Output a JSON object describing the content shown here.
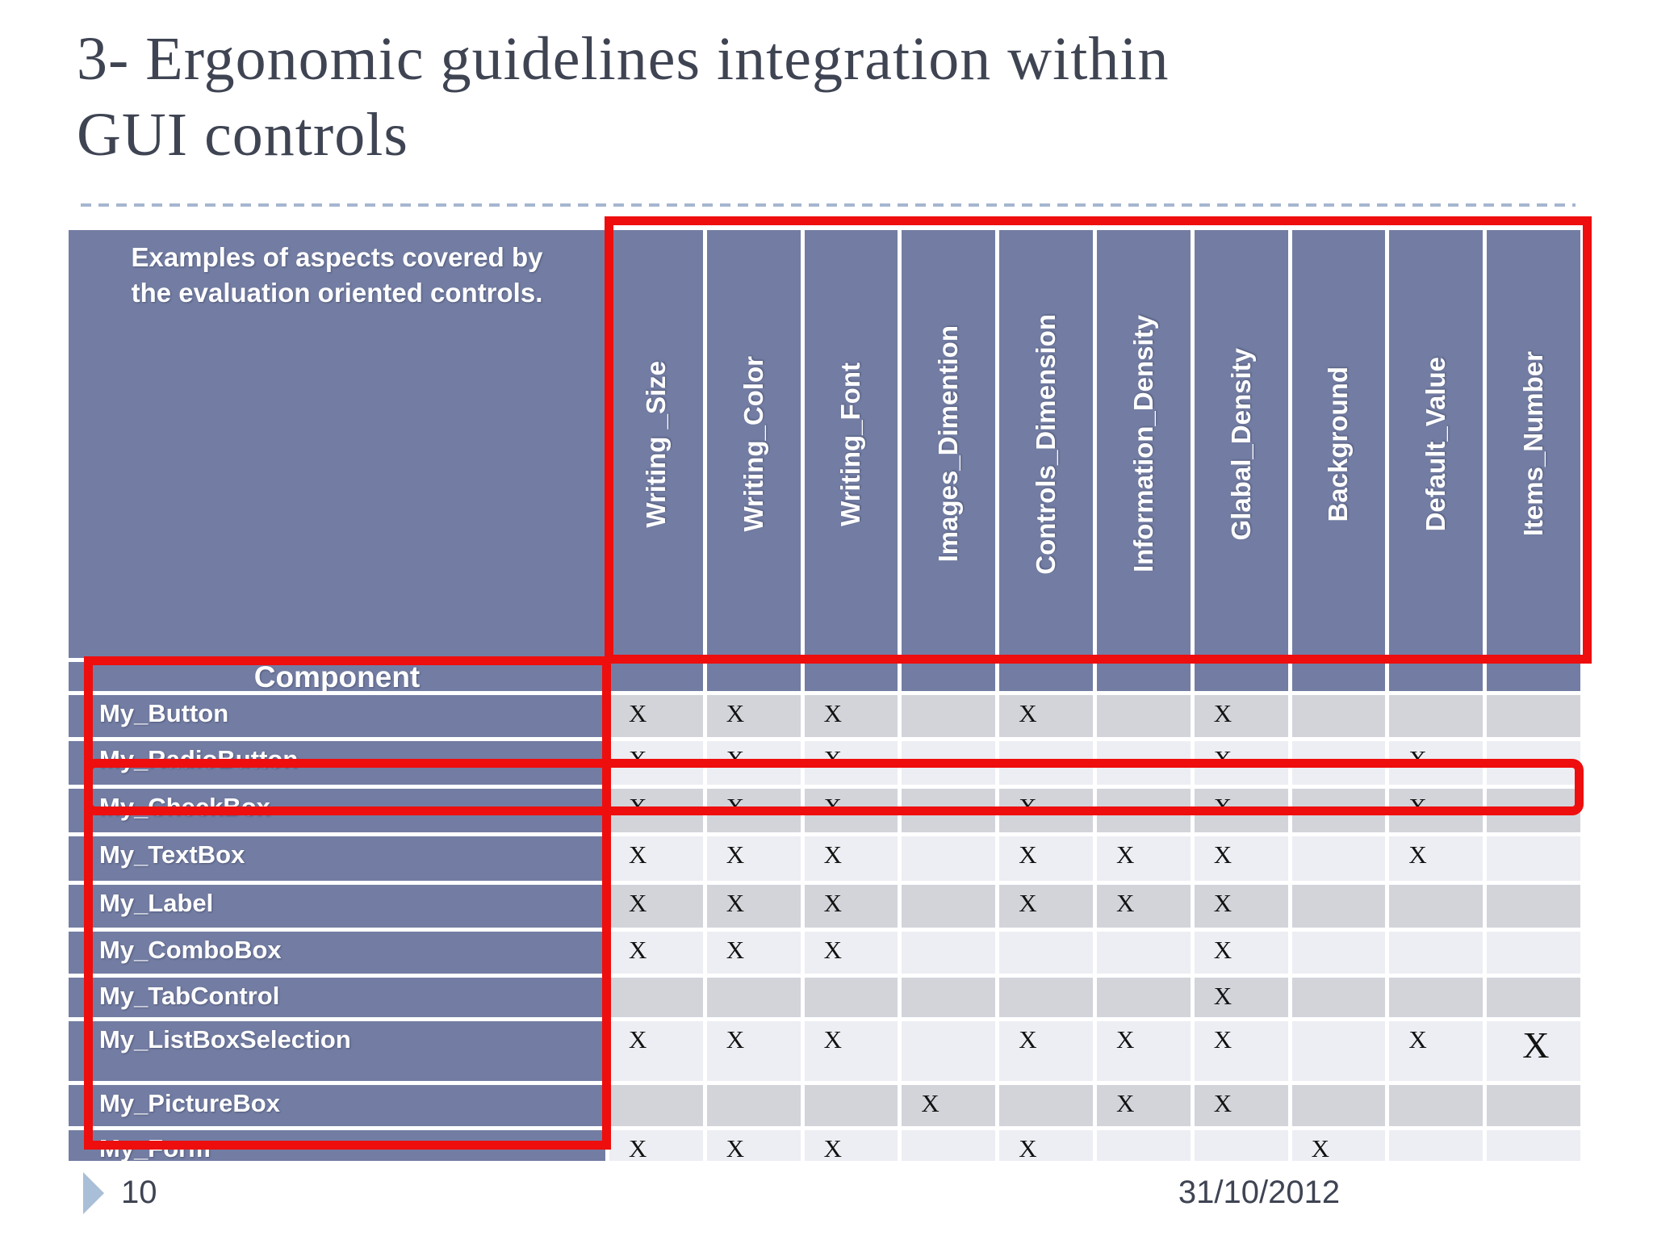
{
  "title": {
    "line1": "3- Ergonomic guidelines integration within",
    "line2": "GUI controls"
  },
  "table": {
    "corner_header": "Examples of aspects covered by the evaluation oriented controls.",
    "component_header": "Component",
    "columns": [
      "Writing _Size",
      "Writing_Color",
      "Writing_Font",
      "Images_Dimention",
      "Controls_Dimension",
      "Information_Density",
      "Glabal_Density",
      "Background",
      "Default_Value",
      "Items_Number"
    ],
    "rows": [
      {
        "label": "My_Button",
        "marks": [
          "X",
          "X",
          "X",
          "",
          "X",
          "",
          "X",
          "",
          "",
          ""
        ]
      },
      {
        "label": "My_RadioButton",
        "marks": [
          "X",
          "X",
          "X",
          "",
          "",
          "",
          "X",
          "",
          "X",
          ""
        ]
      },
      {
        "label": "My_CheckBox",
        "marks": [
          "X",
          "X",
          "X",
          "",
          "X",
          "",
          "X",
          "",
          "X",
          ""
        ]
      },
      {
        "label": "My_TextBox",
        "marks": [
          "X",
          "X",
          "X",
          "",
          "X",
          "X",
          "X",
          "",
          "X",
          ""
        ]
      },
      {
        "label": "My_Label",
        "marks": [
          "X",
          "X",
          "X",
          "",
          "X",
          "X",
          "X",
          "",
          "",
          ""
        ]
      },
      {
        "label": "My_ComboBox",
        "marks": [
          "X",
          "X",
          "X",
          "",
          "",
          "",
          "X",
          "",
          "",
          ""
        ]
      },
      {
        "label": "My_TabControl",
        "marks": [
          "",
          "",
          "",
          "",
          "",
          "",
          "X",
          "",
          "",
          ""
        ]
      },
      {
        "label": "My_ListBoxSelection",
        "marks": [
          "X",
          "X",
          "X",
          "",
          "X",
          "X",
          "X",
          "",
          "X",
          "X"
        ],
        "big_mark_col": 9
      },
      {
        "label": "My_PictureBox",
        "marks": [
          "",
          "",
          "",
          "X",
          "",
          "X",
          "X",
          "",
          "",
          ""
        ]
      },
      {
        "label": "My_Form",
        "marks": [
          "X",
          "X",
          "X",
          "",
          "X",
          "",
          "",
          "X",
          "",
          ""
        ]
      }
    ]
  },
  "chart_data": {
    "type": "table",
    "title": "3- Ergonomic guidelines integration within GUI controls",
    "columns": [
      "Writing _Size",
      "Writing_Color",
      "Writing_Font",
      "Images_Dimention",
      "Controls_Dimension",
      "Information_Density",
      "Glabal_Density",
      "Background",
      "Default_Value",
      "Items_Number"
    ],
    "rows": [
      "My_Button",
      "My_RadioButton",
      "My_CheckBox",
      "My_TextBox",
      "My_Label",
      "My_ComboBox",
      "My_TabControl",
      "My_ListBoxSelection",
      "My_PictureBox",
      "My_Form"
    ],
    "marked_cells": [
      [
        "My_Button",
        [
          "Writing _Size",
          "Writing_Color",
          "Writing_Font",
          "Controls_Dimension",
          "Glabal_Density"
        ]
      ],
      [
        "My_RadioButton",
        [
          "Writing _Size",
          "Writing_Color",
          "Writing_Font",
          "Glabal_Density",
          "Default_Value"
        ]
      ],
      [
        "My_CheckBox",
        [
          "Writing _Size",
          "Writing_Color",
          "Writing_Font",
          "Controls_Dimension",
          "Glabal_Density",
          "Default_Value"
        ]
      ],
      [
        "My_TextBox",
        [
          "Writing _Size",
          "Writing_Color",
          "Writing_Font",
          "Controls_Dimension",
          "Information_Density",
          "Glabal_Density",
          "Default_Value"
        ]
      ],
      [
        "My_Label",
        [
          "Writing _Size",
          "Writing_Color",
          "Writing_Font",
          "Controls_Dimension",
          "Information_Density",
          "Glabal_Density"
        ]
      ],
      [
        "My_ComboBox",
        [
          "Writing _Size",
          "Writing_Color",
          "Writing_Font",
          "Glabal_Density"
        ]
      ],
      [
        "My_TabControl",
        [
          "Glabal_Density"
        ]
      ],
      [
        "My_ListBoxSelection",
        [
          "Writing _Size",
          "Writing_Color",
          "Writing_Font",
          "Controls_Dimension",
          "Information_Density",
          "Glabal_Density",
          "Default_Value",
          "Items_Number"
        ]
      ],
      [
        "My_PictureBox",
        [
          "Images_Dimention",
          "Information_Density",
          "Glabal_Density"
        ]
      ],
      [
        "My_Form",
        [
          "Writing _Size",
          "Writing_Color",
          "Writing_Font",
          "Controls_Dimension",
          "Background"
        ]
      ]
    ]
  },
  "footer": {
    "page_number": "10",
    "date": "31/10/2012"
  },
  "colors": {
    "slate_header": "#737da3",
    "row_dark": "#d2d4da",
    "row_light": "#eceef3",
    "annotation_red": "#ee0e0e",
    "title_text": "#3f4453",
    "dashed_rule": "#a6b6d0",
    "footer_triangle": "#a9bed7"
  }
}
